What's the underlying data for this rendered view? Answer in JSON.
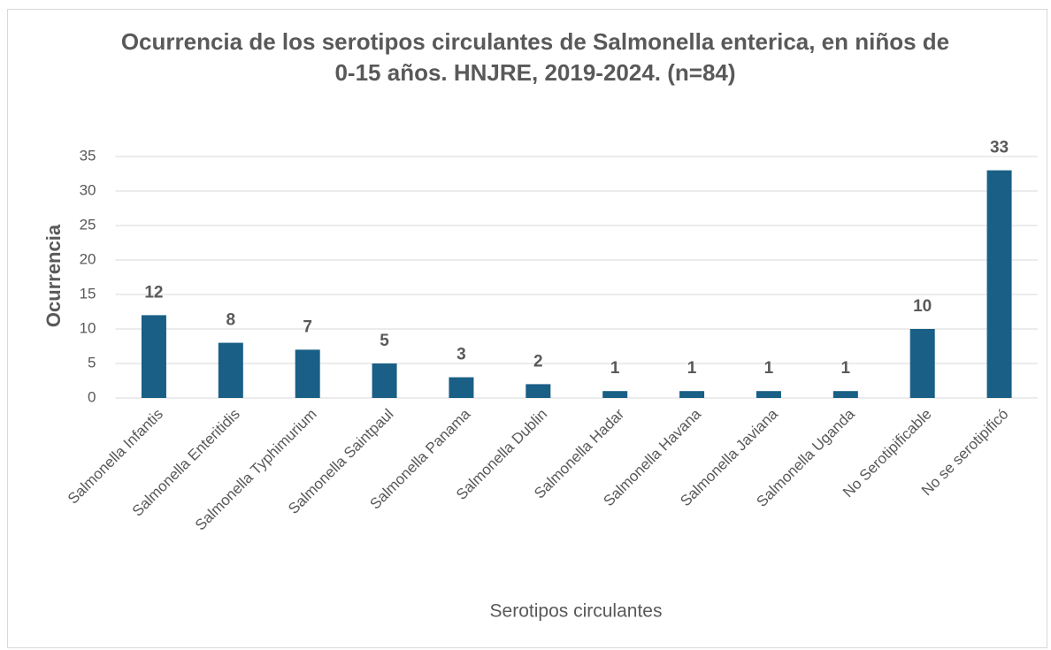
{
  "chart_data": {
    "type": "bar",
    "title": "Ocurrencia de los serotipos circulantes de Salmonella enterica, en niños de 0-15 años. HNJRE, 2019-2024. (n=84)",
    "x_label": "Serotipos circulantes",
    "y_label": "Ocurrencia",
    "categories": [
      "Salmonella Infantis",
      "Salmonella Enteritidis",
      "Salmonella Typhimurium",
      "Salmonella Saintpaul",
      "Salmonella Panama",
      "Salmonella Dublin",
      "Salmonella Hadar",
      "Salmonella Havana",
      "Salmonella Javiana",
      "Salmonella Uganda",
      "No Serotipificable",
      "No se serotipificó"
    ],
    "values": [
      12,
      8,
      7,
      5,
      3,
      2,
      1,
      1,
      1,
      1,
      10,
      33
    ],
    "color": "#195f86",
    "ylim": [
      0,
      35
    ],
    "yticks": [
      0,
      5,
      10,
      15,
      20,
      25,
      30,
      35
    ],
    "grid": true
  }
}
